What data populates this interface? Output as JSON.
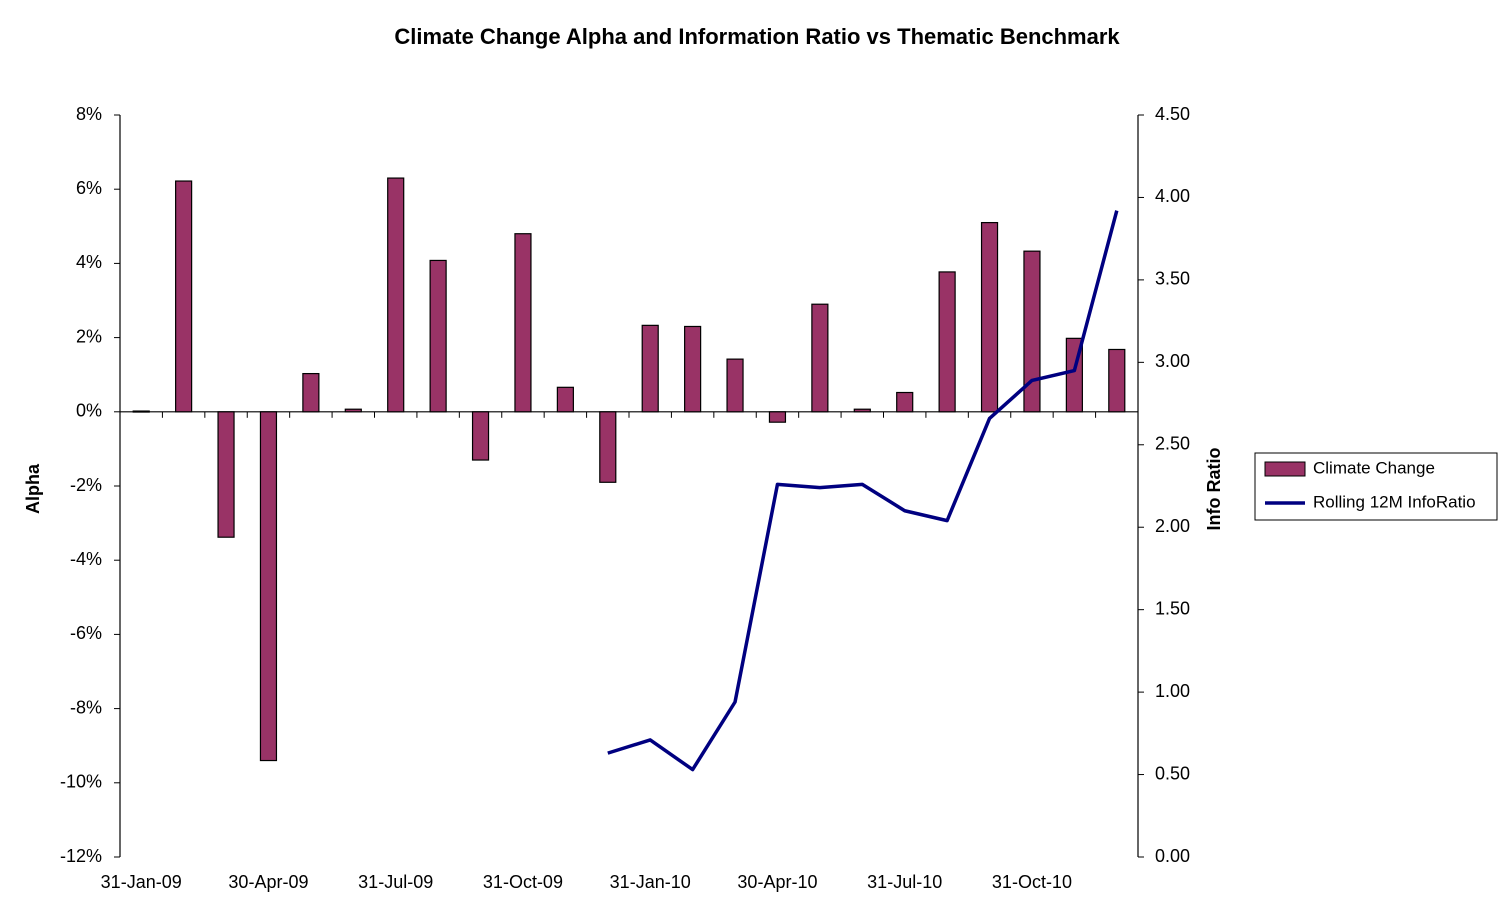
{
  "chart_data": {
    "type": "bar_line",
    "title": "Climate Change Alpha and Information Ratio vs Thematic Benchmark",
    "y_label": "Alpha",
    "y2_label": "Info Ratio",
    "categories": [
      "31-Jan-09",
      null,
      null,
      "30-Apr-09",
      null,
      null,
      "31-Jul-09",
      null,
      null,
      "31-Oct-09",
      null,
      null,
      "31-Jan-10",
      null,
      null,
      "30-Apr-10",
      null,
      null,
      "31-Jul-10",
      null,
      null,
      "31-Oct-10",
      null,
      null
    ],
    "series": [
      {
        "name": "Climate Change",
        "type": "bar",
        "color": "#993366",
        "values": [
          0.02,
          6.22,
          -3.38,
          -9.4,
          1.03,
          0.07,
          6.3,
          4.08,
          -1.3,
          4.8,
          0.66,
          -1.9,
          2.33,
          2.3,
          1.42,
          -0.28,
          2.9,
          0.07,
          0.52,
          3.77,
          5.1,
          4.33,
          1.98,
          1.68
        ]
      },
      {
        "name": "Rolling 12M InfoRatio",
        "type": "line",
        "axis": "y2",
        "color": "#000080",
        "values": [
          null,
          null,
          null,
          null,
          null,
          null,
          null,
          null,
          null,
          null,
          null,
          0.63,
          0.71,
          0.53,
          0.94,
          2.26,
          2.24,
          2.26,
          2.1,
          2.04,
          2.66,
          2.89,
          2.95,
          3.92
        ]
      }
    ],
    "ylim": [
      -12,
      8
    ],
    "yticks": [
      {
        "value": -12,
        "label": "-12%"
      },
      {
        "value": -10,
        "label": "-10%"
      },
      {
        "value": -8,
        "label": "-8%"
      },
      {
        "value": -6,
        "label": "-6%"
      },
      {
        "value": -4,
        "label": "-4%"
      },
      {
        "value": -2,
        "label": "-2%"
      },
      {
        "value": 0,
        "label": "0%"
      },
      {
        "value": 2,
        "label": "2%"
      },
      {
        "value": 4,
        "label": "4%"
      },
      {
        "value": 6,
        "label": "6%"
      },
      {
        "value": 8,
        "label": "8%"
      }
    ],
    "y2lim": [
      0,
      4.5
    ],
    "y2ticks": [
      {
        "value": 0,
        "label": "0.00"
      },
      {
        "value": 0.5,
        "label": "0.50"
      },
      {
        "value": 1,
        "label": "1.00"
      },
      {
        "value": 1.5,
        "label": "1.50"
      },
      {
        "value": 2,
        "label": "2.00"
      },
      {
        "value": 2.5,
        "label": "2.50"
      },
      {
        "value": 3,
        "label": "3.00"
      },
      {
        "value": 3.5,
        "label": "3.50"
      },
      {
        "value": 4,
        "label": "4.00"
      },
      {
        "value": 4.5,
        "label": "4.50"
      }
    ],
    "legend": "right",
    "grid": false
  }
}
